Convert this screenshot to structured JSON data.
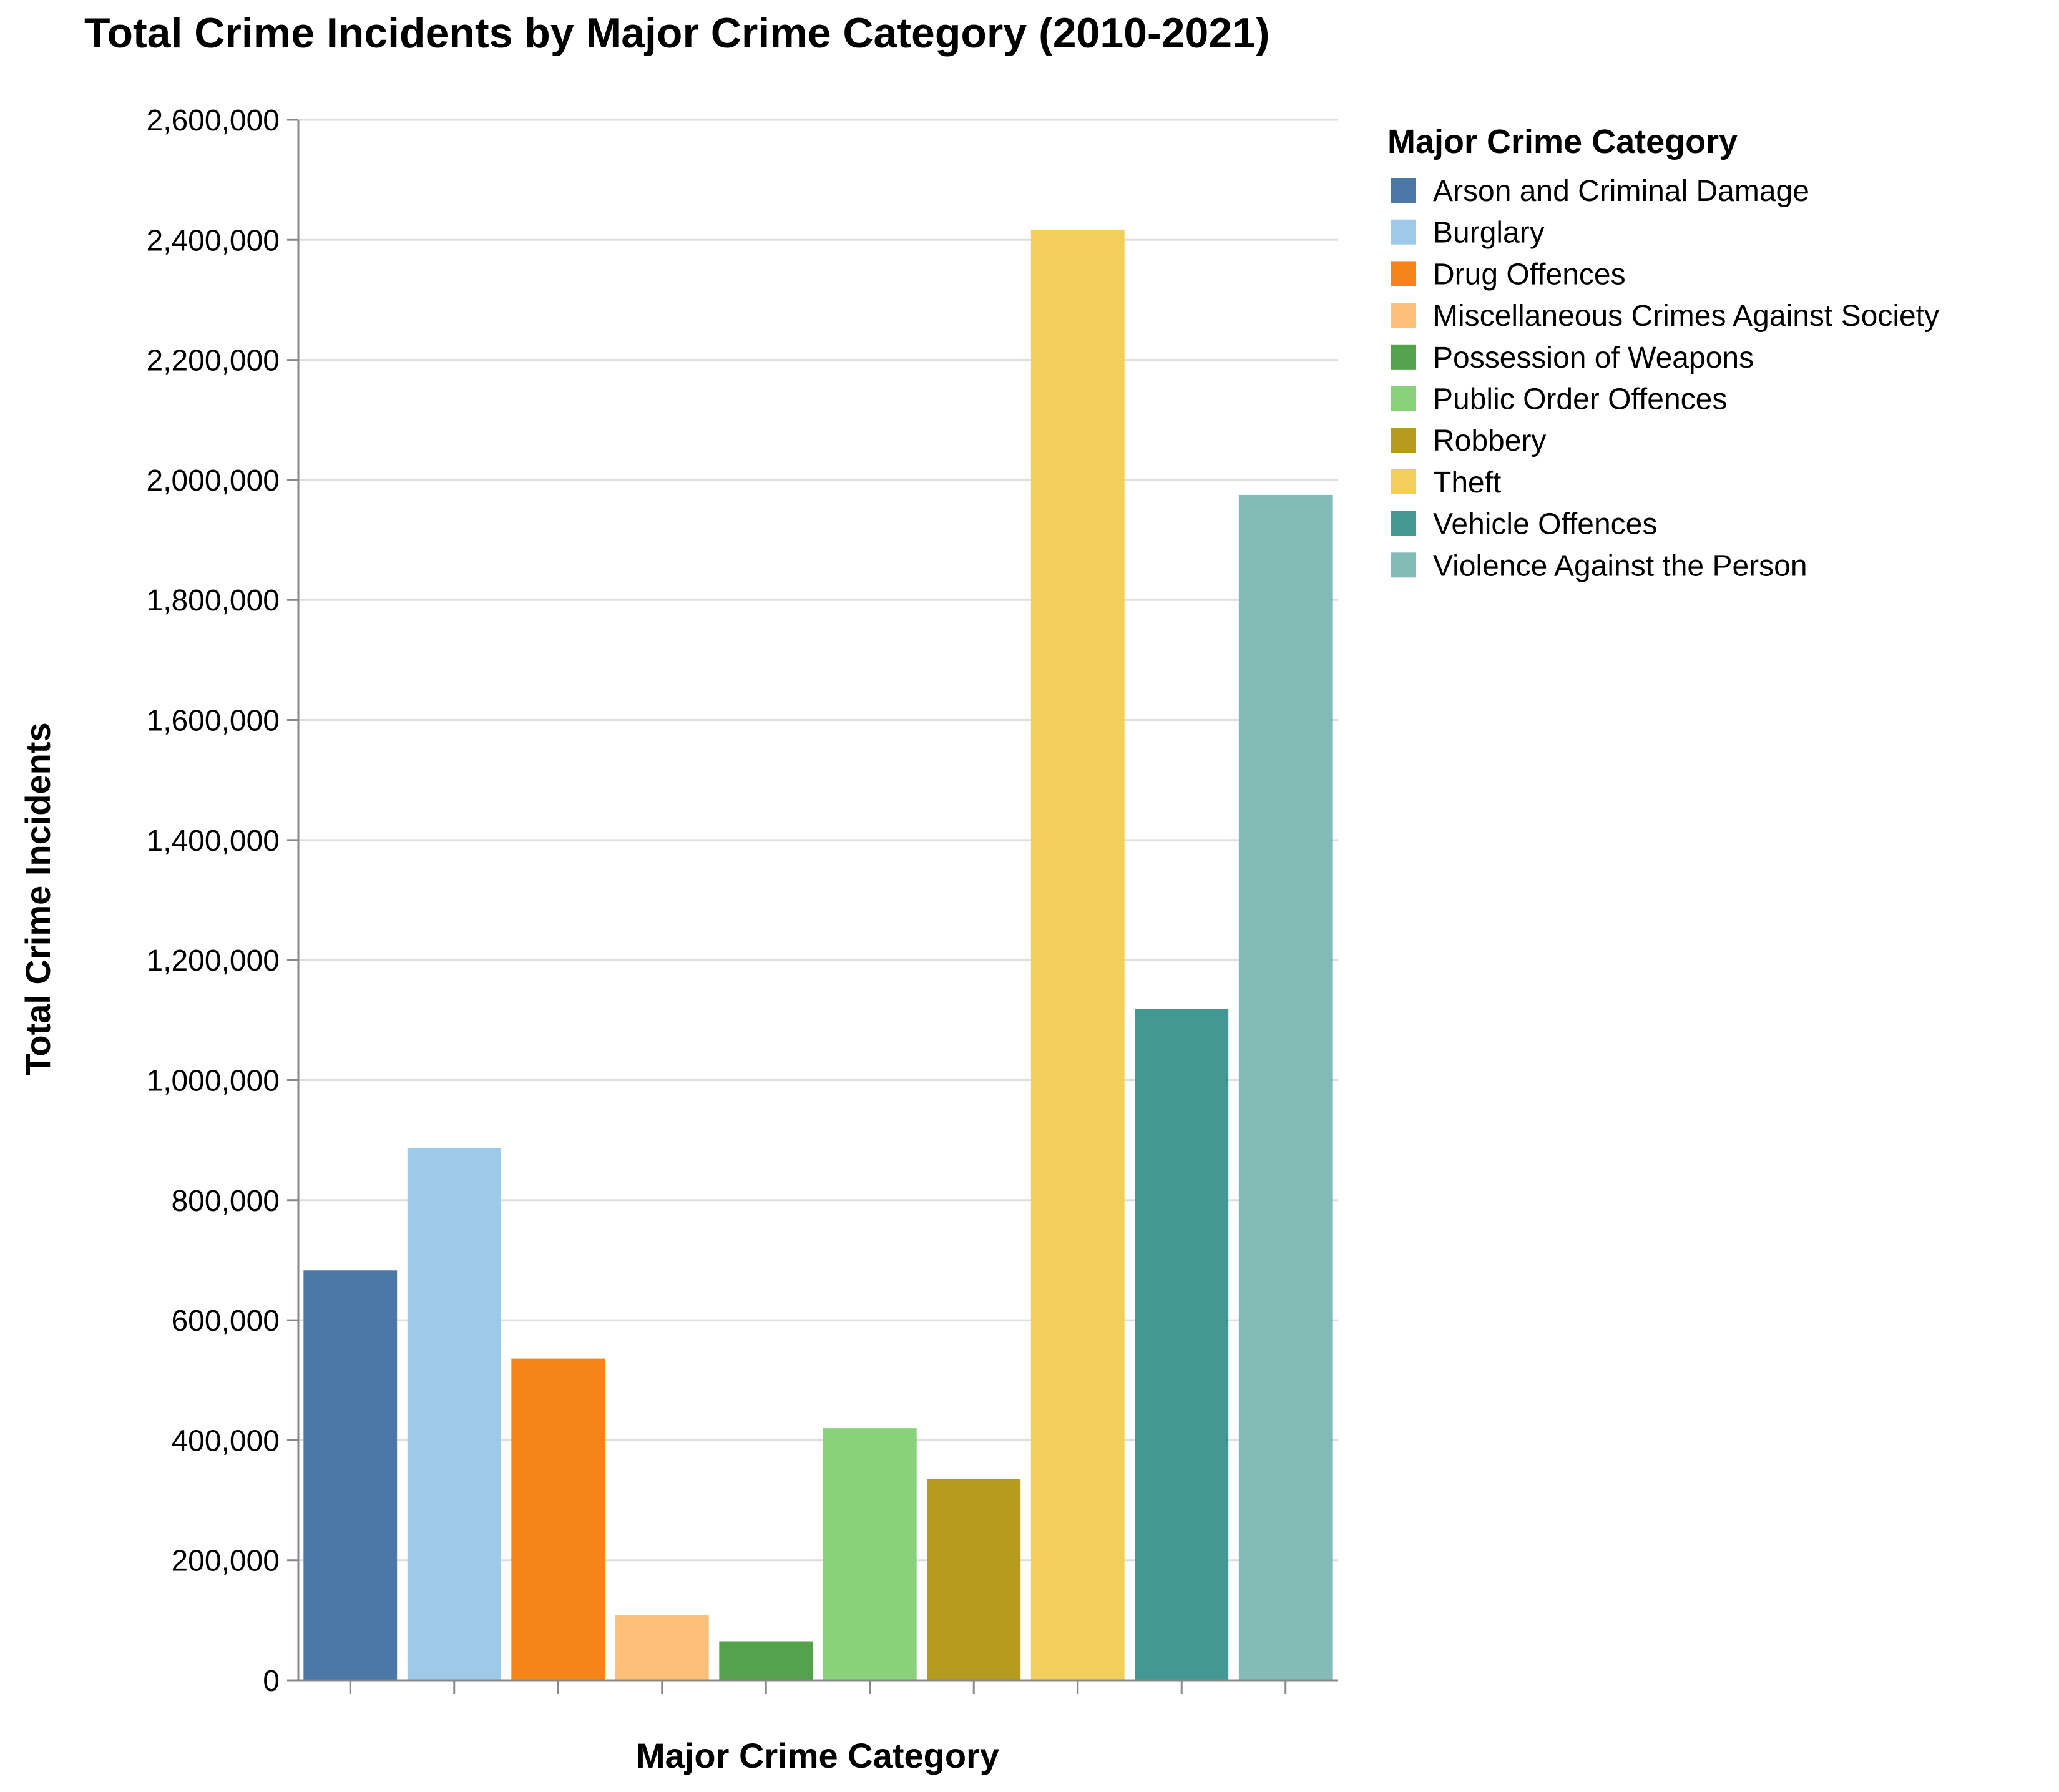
{
  "chart_data": {
    "type": "bar",
    "title": "Total Crime Incidents by Major Crime Category (2010-2021)",
    "xlabel": "Major Crime Category",
    "ylabel": "Total Crime Incidents",
    "ylim": [
      0,
      2600000
    ],
    "yticks": [
      0,
      200000,
      400000,
      600000,
      800000,
      1000000,
      1200000,
      1400000,
      1600000,
      1800000,
      2000000,
      2200000,
      2400000,
      2600000
    ],
    "ytick_labels": [
      "0",
      "200,000",
      "400,000",
      "600,000",
      "800,000",
      "1,000,000",
      "1,200,000",
      "1,400,000",
      "1,600,000",
      "1,800,000",
      "2,000,000",
      "2,200,000",
      "2,400,000",
      "2,600,000"
    ],
    "grid": true,
    "legend": {
      "title": "Major Crime Category",
      "placement": "right"
    },
    "categories": [
      "Arson and Criminal Damage",
      "Burglary",
      "Drug Offences",
      "Miscellaneous Crimes Against Society",
      "Possession of Weapons",
      "Public Order Offences",
      "Robbery",
      "Theft",
      "Vehicle Offences",
      "Violence Against the Person"
    ],
    "values": [
      683000,
      887000,
      536000,
      109000,
      65000,
      420000,
      335000,
      2417000,
      1118000,
      1975000
    ],
    "colors": [
      "#4c78a8",
      "#9ecae9",
      "#f58518",
      "#ffbf79",
      "#54a24b",
      "#88d27a",
      "#b79a20",
      "#f2cf5b",
      "#439894",
      "#83bcb6"
    ]
  }
}
